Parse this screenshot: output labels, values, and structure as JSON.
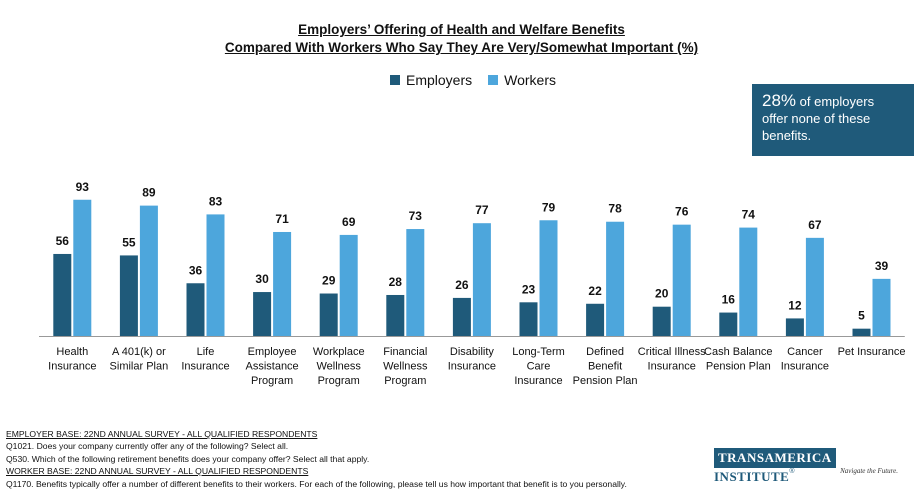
{
  "chart_data": {
    "type": "bar",
    "title_line1": "Employers’ Offering of Health and Welfare Benefits",
    "title_line2": "Compared With Workers Who Say They Are Very/Somewhat Important (%)",
    "categories": [
      [
        "Health",
        "Insurance"
      ],
      [
        "A 401(k) or",
        "Similar Plan"
      ],
      [
        "Life",
        "Insurance"
      ],
      [
        "Employee",
        "Assistance",
        "Program"
      ],
      [
        "Workplace",
        "Wellness",
        "Program"
      ],
      [
        "Financial",
        "Wellness",
        "Program"
      ],
      [
        "Disability",
        "Insurance"
      ],
      [
        "Long-Term",
        "Care",
        "Insurance"
      ],
      [
        "Defined",
        "Benefit",
        "Pension Plan"
      ],
      [
        "Critical Illness",
        "Insurance"
      ],
      [
        "Cash Balance",
        "Pension Plan"
      ],
      [
        "Cancer",
        "Insurance"
      ],
      [
        "Pet Insurance"
      ]
    ],
    "series": [
      {
        "name": "Employers",
        "color": "#1f5a7a",
        "values": [
          56,
          55,
          36,
          30,
          29,
          28,
          26,
          23,
          22,
          20,
          16,
          12,
          5
        ]
      },
      {
        "name": "Workers",
        "color": "#4da6dc",
        "values": [
          93,
          89,
          83,
          71,
          69,
          73,
          77,
          79,
          78,
          76,
          74,
          67,
          39
        ]
      }
    ],
    "ylim": [
      0,
      100
    ],
    "legend": "top-center"
  },
  "callout": {
    "pct": "28%",
    "text1": "of employers",
    "text2": "offer none of these",
    "text3": "benefits."
  },
  "footer": {
    "line1": "EMPLOYER BASE: 22ND ANNUAL SURVEY - ALL QUALIFIED RESPONDENTS",
    "line2": "Q1021. Does your company currently offer any of the following? Select all.",
    "line3": "Q530. Which of the following retirement benefits does your company offer? Select all that apply.",
    "line4": "WORKER BASE: 22ND ANNUAL SURVEY - ALL QUALIFIED RESPONDENTS",
    "line5": "Q1170. Benefits typically offer a number of different benefits to their workers. For each of the following, please tell us how important that benefit is to you personally."
  },
  "logo": {
    "part1": "TRANSAMERICA",
    "part2": "INSTITUTE",
    "tm": "®",
    "tagline": "Navigate the Future."
  }
}
